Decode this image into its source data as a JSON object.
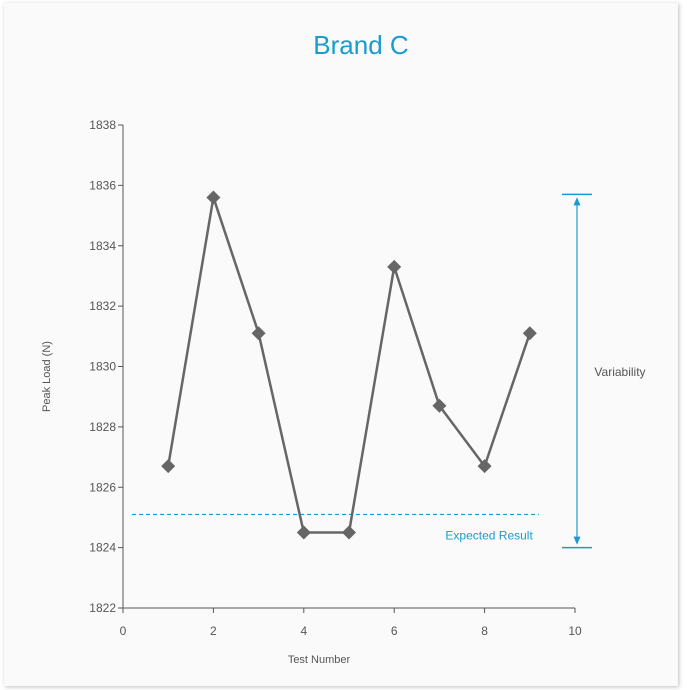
{
  "chart_data": {
    "type": "line",
    "title": "Brand C",
    "xlabel": "Test Number",
    "ylabel": "Peak Load (N)",
    "xlim": [
      0,
      10
    ],
    "ylim": [
      1822,
      1838
    ],
    "xticks": [
      "0",
      "2",
      "4",
      "6",
      "8",
      "10"
    ],
    "yticks": [
      "1822",
      "1824",
      "1826",
      "1828",
      "1830",
      "1832",
      "1834",
      "1836",
      "1838"
    ],
    "grid": false,
    "series": [
      {
        "x": [
          1,
          2,
          3,
          4,
          5,
          6,
          7,
          8,
          9
        ],
        "values": [
          1826.7,
          1835.6,
          1831.1,
          1824.5,
          1824.5,
          1833.3,
          1828.7,
          1826.7,
          1831.1
        ]
      }
    ],
    "reference_line": {
      "label": "Expected Result",
      "value": 1825.1,
      "xrange": [
        0.2,
        9.2
      ]
    },
    "variability": {
      "label": "Variability",
      "ymin": 1824.0,
      "ymax": 1835.7,
      "x": 10.0
    },
    "colors": {
      "series": "#666666",
      "accent": "#1a9bd0",
      "axis": "#555555",
      "title": "#1a9bd0"
    }
  }
}
